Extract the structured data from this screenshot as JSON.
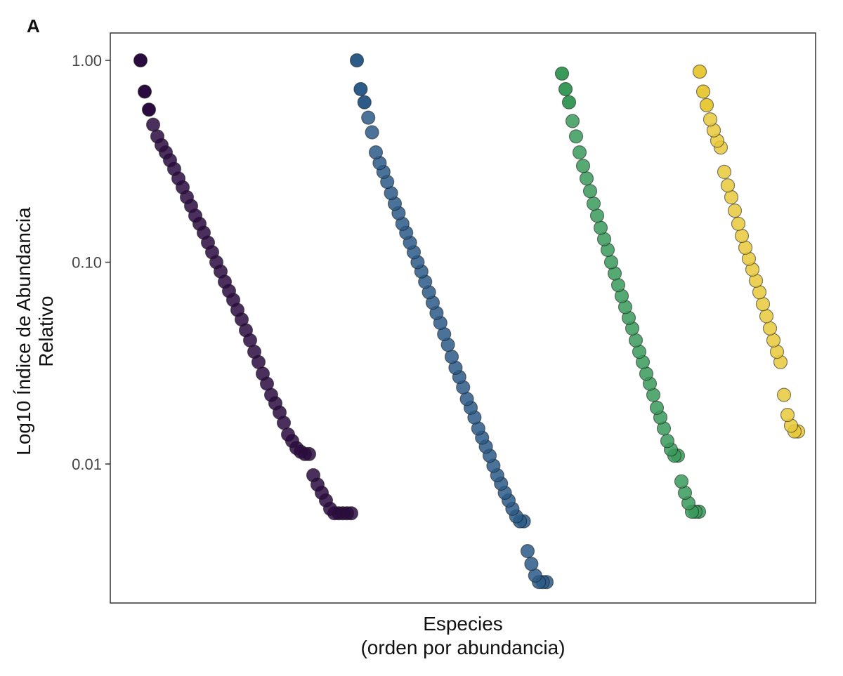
{
  "panel_label": "A",
  "chart_data": {
    "type": "scatter",
    "title": "",
    "xlabel": "Especies",
    "xlabel_sub": "(orden por abundancia)",
    "ylabel": "Log10 Índice de Abundancia Relativo",
    "y_scale": "log10",
    "ylim": [
      0.0023,
      1.2
    ],
    "y_ticks": [
      1.0,
      0.1,
      0.01
    ],
    "y_tick_labels": [
      "1.00",
      "0.10",
      "0.01"
    ],
    "grid": false,
    "series": [
      {
        "name": "series-1",
        "color": "#2b0b3f",
        "values": [
          1.0,
          0.7,
          0.57,
          0.48,
          0.42,
          0.38,
          0.35,
          0.32,
          0.29,
          0.26,
          0.235,
          0.21,
          0.19,
          0.17,
          0.155,
          0.14,
          0.125,
          0.112,
          0.1,
          0.09,
          0.08,
          0.072,
          0.065,
          0.058,
          0.052,
          0.046,
          0.041,
          0.036,
          0.032,
          0.028,
          0.025,
          0.022,
          0.02,
          0.018,
          0.016,
          0.014,
          0.013,
          0.012,
          0.0115,
          0.0112,
          0.0112,
          0.0088,
          0.0079,
          0.0072,
          0.0066,
          0.006,
          0.0057,
          0.0057,
          0.0057,
          0.0057,
          0.0057
        ]
      },
      {
        "name": "series-2",
        "color": "#2c5b87",
        "values": [
          1.0,
          0.72,
          0.62,
          0.52,
          0.44,
          0.35,
          0.31,
          0.28,
          0.25,
          0.22,
          0.195,
          0.175,
          0.155,
          0.14,
          0.125,
          0.112,
          0.1,
          0.09,
          0.08,
          0.071,
          0.063,
          0.056,
          0.05,
          0.044,
          0.039,
          0.034,
          0.03,
          0.027,
          0.024,
          0.021,
          0.019,
          0.017,
          0.015,
          0.0135,
          0.0122,
          0.011,
          0.0098,
          0.0088,
          0.008,
          0.0072,
          0.0066,
          0.006,
          0.0055,
          0.0052,
          0.0052,
          0.0037,
          0.0032,
          0.0028,
          0.0026,
          0.0026,
          0.0026
        ]
      },
      {
        "name": "series-3",
        "color": "#3a9a5a",
        "values": [
          0.86,
          0.72,
          0.62,
          0.5,
          0.42,
          0.35,
          0.3,
          0.26,
          0.225,
          0.195,
          0.17,
          0.148,
          0.13,
          0.115,
          0.1,
          0.088,
          0.077,
          0.068,
          0.06,
          0.053,
          0.047,
          0.041,
          0.036,
          0.032,
          0.028,
          0.025,
          0.022,
          0.019,
          0.017,
          0.015,
          0.013,
          0.0118,
          0.011,
          0.011,
          0.0082,
          0.0072,
          0.0064,
          0.0058,
          0.0058,
          0.0058
        ]
      },
      {
        "name": "series-4",
        "color": "#e8c93b",
        "values": [
          0.88,
          0.7,
          0.6,
          0.51,
          0.45,
          0.4,
          0.37,
          0.28,
          0.24,
          0.21,
          0.18,
          0.155,
          0.135,
          0.118,
          0.104,
          0.092,
          0.081,
          0.071,
          0.062,
          0.054,
          0.047,
          0.041,
          0.036,
          0.032,
          0.022,
          0.0175,
          0.0155,
          0.0145,
          0.0145
        ]
      }
    ],
    "annotations": []
  }
}
